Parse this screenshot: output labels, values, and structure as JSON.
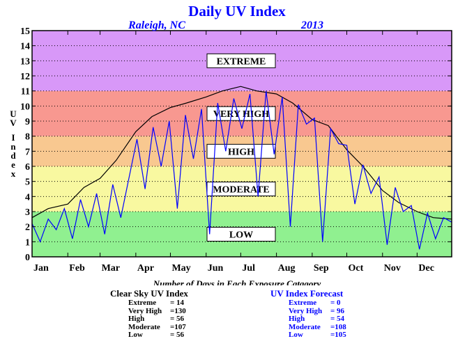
{
  "chart_data": {
    "type": "line",
    "title": "Daily UV Index",
    "subtitle_location": "Raleigh, NC",
    "subtitle_year": "2013",
    "ylabel": "UV Index",
    "xlabel": "Number of Days in Each Exposure Catagory",
    "ylim": [
      0,
      15
    ],
    "yticks": [
      "0",
      "1",
      "2",
      "3",
      "4",
      "5",
      "6",
      "7",
      "8",
      "9",
      "10",
      "11",
      "12",
      "13",
      "14",
      "15"
    ],
    "months": [
      "Jan",
      "Feb",
      "Mar",
      "Apr",
      "May",
      "Jun",
      "Jul",
      "Aug",
      "Sep",
      "Oct",
      "Nov",
      "Dec"
    ],
    "xlim_days": [
      1,
      365
    ],
    "grid": true,
    "bands": [
      {
        "label": "LOW",
        "from": 0,
        "to": 3,
        "color": "#90f090"
      },
      {
        "label": "MODERATE",
        "from": 3,
        "to": 6,
        "color": "#f8f8a0"
      },
      {
        "label": "HIGH",
        "from": 6,
        "to": 8,
        "color": "#f8c890"
      },
      {
        "label": "VERY HIGH",
        "from": 8,
        "to": 11,
        "color": "#f89890"
      },
      {
        "label": "EXTREME",
        "from": 11,
        "to": 15,
        "color": "#d898f8"
      }
    ],
    "series": [
      {
        "name": "Clear Sky UV Index",
        "color": "#000000",
        "x": [
          1,
          15,
          32,
          46,
          60,
          74,
          91,
          105,
          121,
          135,
          152,
          166,
          182,
          196,
          213,
          227,
          244,
          258,
          274,
          288,
          305,
          319,
          335,
          349,
          365
        ],
        "y": [
          2.6,
          3.2,
          3.5,
          4.6,
          5.2,
          6.4,
          8.3,
          9.3,
          9.9,
          10.2,
          10.6,
          11.0,
          11.3,
          11.0,
          10.8,
          10.2,
          9.1,
          8.7,
          7.1,
          6.0,
          4.4,
          3.6,
          3.0,
          2.6,
          2.5
        ]
      },
      {
        "name": "UV Index Forecast",
        "color": "#0000ff",
        "x": [
          1,
          8,
          15,
          22,
          29,
          36,
          43,
          50,
          57,
          64,
          71,
          78,
          85,
          92,
          99,
          106,
          113,
          120,
          127,
          134,
          141,
          148,
          155,
          162,
          169,
          176,
          183,
          190,
          197,
          204,
          211,
          218,
          225,
          232,
          239,
          246,
          253,
          260,
          267,
          274,
          281,
          288,
          295,
          302,
          309,
          316,
          323,
          330,
          337,
          344,
          351,
          358,
          365
        ],
        "y": [
          2.2,
          1.0,
          2.5,
          1.8,
          3.2,
          1.2,
          3.8,
          2.0,
          4.2,
          1.5,
          4.8,
          2.6,
          5.2,
          7.8,
          4.5,
          8.6,
          6.0,
          9.0,
          3.2,
          9.4,
          6.5,
          9.8,
          1.5,
          10.2,
          7.0,
          10.5,
          8.5,
          10.8,
          4.0,
          11.0,
          6.8,
          10.6,
          2.0,
          10.1,
          8.8,
          9.2,
          1.0,
          8.5,
          7.5,
          7.4,
          3.5,
          6.1,
          4.2,
          5.3,
          0.8,
          4.6,
          3.0,
          3.4,
          0.5,
          2.9,
          1.2,
          2.6,
          2.3
        ]
      }
    ]
  },
  "stats": {
    "heading": "Number of Days in Each Exposure Catagory",
    "clear": {
      "title": "Clear Sky UV Index",
      "rows": [
        {
          "label": "Extreme",
          "value": "= 14"
        },
        {
          "label": "Very High",
          "value": "=130"
        },
        {
          "label": "High",
          "value": "= 56"
        },
        {
          "label": "Moderate",
          "value": "=107"
        },
        {
          "label": "Low",
          "value": "= 56"
        }
      ]
    },
    "forecast": {
      "title": "UV Index Forecast",
      "rows": [
        {
          "label": "Extreme",
          "value": "= 0"
        },
        {
          "label": "Very High",
          "value": "= 96"
        },
        {
          "label": "High",
          "value": "= 54"
        },
        {
          "label": "Moderate",
          "value": "=108"
        },
        {
          "label": "Low",
          "value": "=105"
        }
      ]
    }
  }
}
